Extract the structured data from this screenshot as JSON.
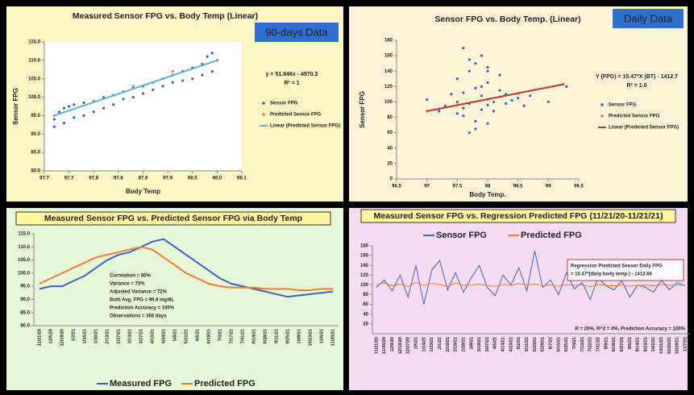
{
  "chart_data": [
    {
      "type": "scatter",
      "title": "Measured Sensor FPG vs. Body Temp (Linear)",
      "badge": "90-days Data",
      "xlabel": "Body Temp",
      "ylabel": "Sensor FPG",
      "xlim": [
        97.7,
        98.1
      ],
      "xticks": [
        97.7,
        {
          "value": 97.75,
          "label": "97.7"
        },
        97.8,
        {
          "value": 97.85,
          "label": "97.8"
        },
        97.9,
        {
          "value": 97.95,
          "label": "97.9"
        },
        {
          "value": 98.0,
          "label": "98.0"
        },
        {
          "value": 98.05,
          "label": "98.0"
        },
        98.1
      ],
      "ylim": [
        80,
        115
      ],
      "yticks": [
        {
          "value": 80,
          "label": "80.0"
        },
        {
          "value": 85,
          "label": "85.0"
        },
        {
          "value": 90,
          "label": "90.0"
        },
        {
          "value": 95,
          "label": "95.0"
        },
        {
          "value": 100,
          "label": "100.0"
        },
        {
          "value": 105,
          "label": "105.0"
        },
        {
          "value": 110,
          "label": "110.0"
        },
        {
          "value": 115,
          "label": "115.0"
        }
      ],
      "equation": [
        "y = 51.846x - 4970.3",
        "R² = 1"
      ],
      "legend": "right",
      "series": [
        {
          "name": "Sensor FPG",
          "color": "#3a63c4",
          "mode": "markers",
          "x": [
            97.72,
            97.73,
            97.74,
            97.75,
            97.76,
            97.78,
            97.8,
            97.82,
            97.84,
            97.86,
            97.88,
            97.9,
            97.92,
            97.94,
            97.96,
            97.98,
            98.0,
            98.02,
            98.03,
            98.04,
            98.05,
            98.04,
            98.02,
            98.0,
            97.98,
            97.96,
            97.94,
            97.92,
            97.9,
            97.88,
            97.86,
            97.84,
            97.82,
            97.8,
            97.78,
            97.76,
            97.74,
            97.72
          ],
          "values": [
            94,
            96,
            97,
            97.5,
            98,
            98.5,
            99,
            100,
            100.5,
            101.5,
            102.5,
            103,
            104,
            105,
            106,
            107,
            108,
            109,
            111,
            112,
            110,
            107,
            106,
            105,
            104.5,
            104,
            103,
            102,
            101,
            100,
            99.5,
            98,
            97,
            96,
            95,
            94.5,
            93,
            92
          ]
        },
        {
          "name": "Predicted Sensor FPG",
          "color": "#ed7d31",
          "mode": "markers",
          "x": [
            97.72,
            97.8,
            97.88,
            97.96,
            98.05
          ],
          "values": [
            95,
            99,
            103,
            107,
            110
          ]
        },
        {
          "name": "Linear (Predicted Sensor FPG)",
          "color": "#5ab4e5",
          "mode": "line",
          "x": [
            97.72,
            98.05
          ],
          "values": [
            95,
            110
          ]
        }
      ]
    },
    {
      "type": "scatter",
      "title": "Sensor FPG vs. Body Temp. (Linear)",
      "badge": "Daily Data",
      "xlabel": "Body Temp.",
      "ylabel": "Sensor FPG",
      "xlim": [
        96.5,
        99.5
      ],
      "xticks": [
        96.5,
        97,
        97.5,
        98,
        98.5,
        99,
        99.5
      ],
      "ylim": [
        0,
        180
      ],
      "yticks": [
        0,
        20,
        40,
        60,
        80,
        100,
        120,
        140,
        160,
        180
      ],
      "equation": [
        "Y (FPG) = 15.47*X (BT) - 1412.7",
        "R² = 1.0"
      ],
      "legend": "right",
      "series": [
        {
          "name": "Sensor FPG",
          "color": "#3a63c4",
          "mode": "markers",
          "x": [
            97,
            97.2,
            97.3,
            97.4,
            97.5,
            97.5,
            97.5,
            97.6,
            97.6,
            97.6,
            97.7,
            97.7,
            97.7,
            97.8,
            97.8,
            97.8,
            97.9,
            97.9,
            97.9,
            98,
            98,
            98,
            98,
            98.1,
            98.1,
            98.2,
            98.2,
            98.3,
            98.3,
            98.4,
            98.5,
            98.6,
            98.7,
            99,
            99.3,
            97.6,
            97.7,
            97.8,
            97.9,
            98
          ],
          "values": [
            103,
            88,
            95,
            110,
            130,
            85,
            100,
            170,
            92,
            112,
            60,
            98,
            140,
            75,
            118,
            150,
            90,
            108,
            160,
            72,
            96,
            125,
            145,
            100,
            88,
            115,
            135,
            98,
            110,
            102,
            105,
            95,
            108,
            100,
            120,
            82,
            155,
            65,
            120,
            140
          ]
        },
        {
          "name": "Predicted Sensor FPG",
          "color": "#ed7d31",
          "mode": "markers",
          "x": [
            97,
            97.5,
            98,
            98.5,
            99,
            99.25
          ],
          "values": [
            88,
            96,
            103,
            111,
            119,
            123
          ]
        },
        {
          "name": "Linear (Predicted Sensor FPG)",
          "color": "#c0392b",
          "mode": "line",
          "x": [
            97,
            99.25
          ],
          "values": [
            88,
            123
          ]
        }
      ]
    },
    {
      "type": "line",
      "title": "Measured Sensor FPG vs. Predicted Sensor FPG via Body Temp",
      "categories": [
        "11/21/20",
        "12/5/20",
        "12/19/20",
        "1/2/21",
        "1/16/21",
        "1/30/21",
        "2/13/21",
        "2/27/21",
        "3/13/21",
        "3/27/21",
        "4/10/21",
        "4/24/21",
        "5/8/21",
        "5/22/21",
        "6/5/21",
        "6/19/21",
        "7/3/21",
        "7/17/21",
        "7/31/21",
        "8/14/21",
        "8/28/21",
        "9/11/21",
        "9/25/21",
        "10/9/21",
        "10/23/21",
        "11/6/21",
        "11/20/21"
      ],
      "ylim": [
        80,
        115
      ],
      "yticks": [
        {
          "value": 80,
          "label": "80.0"
        },
        {
          "value": 85,
          "label": "85.0"
        },
        {
          "value": 90,
          "label": "90.0"
        },
        {
          "value": 95,
          "label": "95.0"
        },
        {
          "value": 100,
          "label": "100.0"
        },
        {
          "value": 105,
          "label": "105.0"
        },
        {
          "value": 110,
          "label": "110.0"
        },
        {
          "value": 115,
          "label": "115.0"
        }
      ],
      "notes": [
        "Correlation = 85%",
        "Variance = 72%",
        "Adjusted Variance = 72%",
        "Both Avg. FPG = 99.8 mg/dL",
        "Prediction Accuracy = 100%",
        "Observations = 366 days"
      ],
      "legend": "bottom",
      "series": [
        {
          "name": "Measured FPG",
          "color": "#3a63c4",
          "values": [
            94,
            95,
            95,
            97,
            99,
            102,
            105,
            107,
            108,
            110,
            112,
            113,
            110,
            107,
            104,
            101,
            98,
            96,
            95,
            94,
            93,
            92,
            91,
            91.5,
            92,
            92.5,
            93
          ]
        },
        {
          "name": "Predicted FPG",
          "color": "#ed7d31",
          "values": [
            96,
            98,
            100,
            102,
            104,
            106,
            107,
            108,
            109,
            110,
            109,
            106,
            103,
            100,
            98,
            96,
            95,
            94.5,
            94.5,
            94.5,
            94,
            94,
            94,
            93.5,
            93.5,
            94,
            94
          ]
        }
      ]
    },
    {
      "type": "line",
      "title": "Measured Sensor FPG vs. Regression Predicted FPG (11/21/20-11/21/21)",
      "categories": [
        "11/21/20",
        "11/30/20",
        "12/9/20",
        "12/18/20",
        "12/27/20",
        "1/5/21",
        "1/14/21",
        "1/23/21",
        "2/1/21",
        "2/10/21",
        "2/19/21",
        "2/28/21",
        "3/9/21",
        "3/18/21",
        "3/27/21",
        "4/5/21",
        "4/14/21",
        "4/23/21",
        "5/2/21",
        "5/11/21",
        "5/20/21",
        "5/29/21",
        "6/7/21",
        "6/16/21",
        "6/25/21",
        "7/4/21",
        "7/13/21",
        "7/22/21",
        "7/31/21",
        "8/9/21",
        "8/18/21",
        "8/27/21",
        "9/5/21",
        "9/14/21",
        "9/23/21",
        "10/2/21",
        "10/11/21",
        "10/20/21",
        "10/29/21",
        "11/7/21"
      ],
      "ylim": [
        0,
        180
      ],
      "yticks": [
        20,
        40,
        60,
        80,
        100,
        120,
        140,
        160,
        180
      ],
      "notes": [
        "Regression Predicted Sensor Daily FPG",
        "= 15.47*(daily body temp.) - 1412.66"
      ],
      "footer": "R = 20%, R^2 = 4%, Prediction Accuracy = 100%",
      "legend": "top",
      "series": [
        {
          "name": "Sensor FPG",
          "color": "#3a63c4",
          "values": [
            95,
            110,
            88,
            120,
            75,
            140,
            60,
            130,
            150,
            90,
            125,
            85,
            115,
            140,
            95,
            78,
            120,
            100,
            135,
            88,
            170,
            95,
            110,
            80,
            125,
            92,
            105,
            70,
            115,
            98,
            90,
            108,
            75,
            100,
            95,
            85,
            110,
            90,
            105,
            98
          ]
        },
        {
          "name": "Predicted FPG",
          "color": "#ed7d31",
          "values": [
            100,
            104,
            98,
            102,
            96,
            105,
            99,
            103,
            101,
            97,
            104,
            99,
            100,
            102,
            98,
            97,
            101,
            99,
            103,
            100,
            102,
            98,
            100,
            97,
            101,
            99,
            100,
            96,
            101,
            99,
            98,
            100,
            97,
            99,
            100,
            98,
            101,
            99,
            100,
            99
          ]
        }
      ]
    }
  ]
}
